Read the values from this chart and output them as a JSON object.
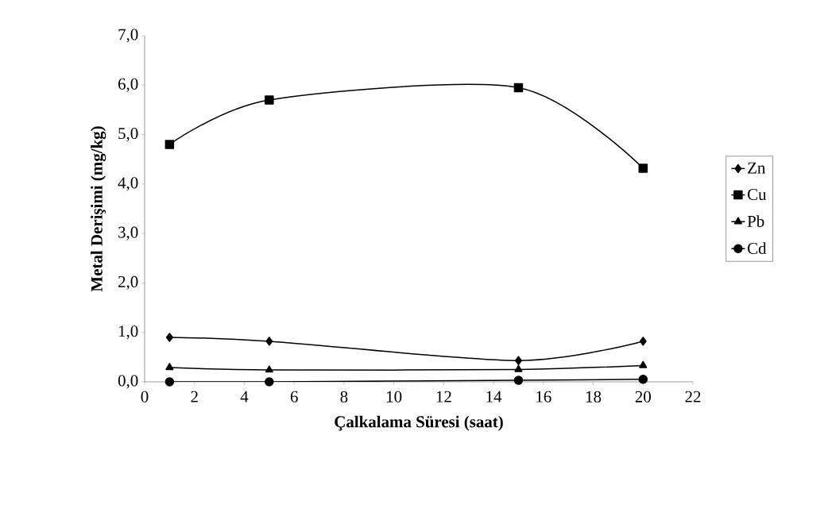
{
  "chart_data": {
    "type": "line",
    "xlabel": "Çalkalama Süresi (saat)",
    "ylabel": "Metal Derişimi (mg/kg)",
    "x": [
      1,
      5,
      15,
      20
    ],
    "series": [
      {
        "name": "Zn",
        "color": "#000000",
        "marker": "diamond",
        "values": [
          0.9,
          0.82,
          0.43,
          0.82
        ]
      },
      {
        "name": "Cu",
        "color": "#000000",
        "marker": "square",
        "values": [
          4.8,
          5.7,
          5.95,
          4.32
        ]
      },
      {
        "name": "Pb",
        "color": "#000000",
        "marker": "triangle",
        "values": [
          0.29,
          0.24,
          0.25,
          0.33
        ]
      },
      {
        "name": "Cd",
        "color": "#000000",
        "marker": "circle",
        "values": [
          0.0,
          0.0,
          0.03,
          0.05
        ]
      }
    ],
    "xlim": [
      0,
      22
    ],
    "xticks": [
      0,
      2,
      4,
      6,
      8,
      10,
      12,
      14,
      16,
      18,
      20,
      22
    ],
    "ylim": [
      0,
      7
    ],
    "yticks": [
      {
        "value": 0,
        "label": "0,0"
      },
      {
        "value": 1,
        "label": "1,0"
      },
      {
        "value": 2,
        "label": "2,0"
      },
      {
        "value": 3,
        "label": "3,0"
      },
      {
        "value": 4,
        "label": "4,0"
      },
      {
        "value": 5,
        "label": "5,0"
      },
      {
        "value": 6,
        "label": "6,0"
      },
      {
        "value": 7,
        "label": "7,0"
      }
    ],
    "grid": false,
    "legend": "right",
    "line_style": "solid"
  }
}
